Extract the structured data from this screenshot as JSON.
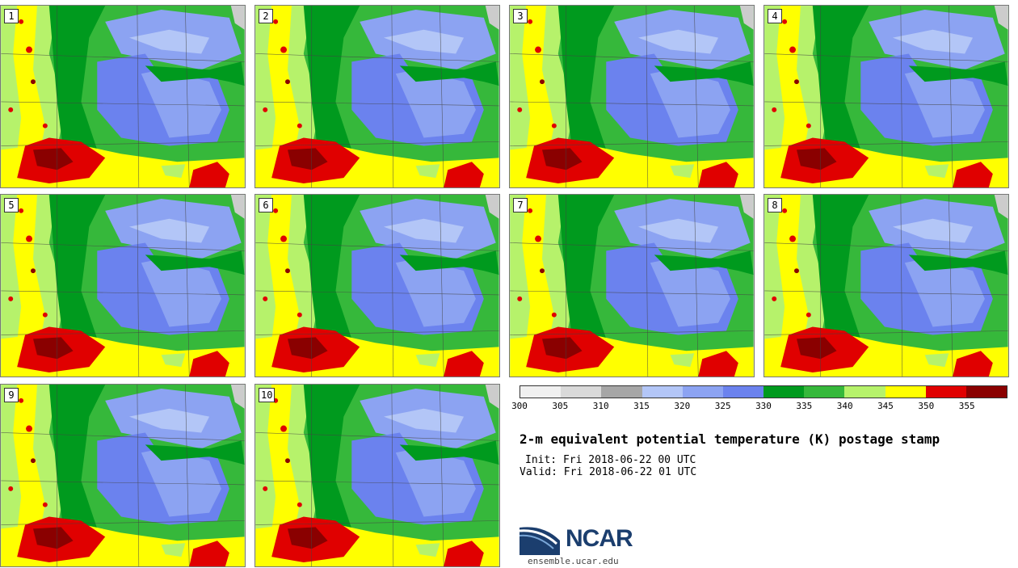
{
  "title": "2-m equivalent potential temperature (K) postage stamp",
  "init_label": "Init: Fri 2018-06-22 00 UTC",
  "valid_label": "Valid: Fri 2018-06-22 01 UTC",
  "members": [
    "1",
    "2",
    "3",
    "4",
    "5",
    "6",
    "7",
    "8",
    "9",
    "10"
  ],
  "colorbar": {
    "unit": "K",
    "levels": [
      300,
      305,
      310,
      315,
      320,
      325,
      330,
      335,
      340,
      345,
      350,
      355
    ],
    "tick_labels": [
      "300",
      "305",
      "310",
      "315",
      "320",
      "325",
      "330",
      "335",
      "340",
      "345",
      "350",
      "355"
    ],
    "colors": [
      "#f0f0f0",
      "#d9d9d9",
      "#a6a6a6",
      "#b3c6f7",
      "#8ca3f2",
      "#6b82ee",
      "#009a1e",
      "#36b83b",
      "#b6f26b",
      "#ffff00",
      "#e00000",
      "#8a0000"
    ]
  },
  "logo": {
    "text": "NCAR",
    "url": "ensemble.ucar.edu"
  }
}
